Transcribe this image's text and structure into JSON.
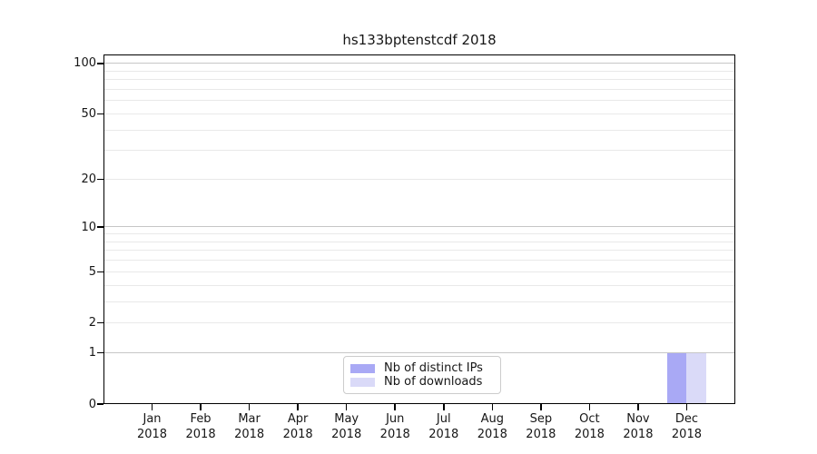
{
  "chart_data": {
    "type": "bar",
    "title": "hs133bptenstcdf 2018",
    "categories": [
      "Jan",
      "Feb",
      "Mar",
      "Apr",
      "May",
      "Jun",
      "Jul",
      "Aug",
      "Sep",
      "Oct",
      "Nov",
      "Dec"
    ],
    "category_sublabel": "2018",
    "series": [
      {
        "name": "Nb of distinct IPs",
        "color": "#a9a9f5",
        "values": [
          0,
          0,
          0,
          0,
          0,
          0,
          0,
          0,
          0,
          0,
          0,
          1
        ]
      },
      {
        "name": "Nb of downloads",
        "color": "#dadaf8",
        "values": [
          0,
          0,
          0,
          0,
          0,
          0,
          0,
          0,
          0,
          0,
          0,
          1
        ]
      }
    ],
    "yscale": "log1p",
    "ylim": [
      0,
      113
    ],
    "yticks": [
      0,
      1,
      2,
      5,
      10,
      20,
      50,
      100
    ],
    "yticks_major_grid": [
      1,
      10,
      100
    ],
    "yticks_minor_grid": [
      2,
      5,
      3,
      4,
      6,
      7,
      8,
      9,
      20,
      50,
      30,
      40,
      60,
      70,
      80,
      90
    ],
    "grid": "horizontal",
    "legend_position": "lower-center",
    "colors": {
      "axis": "#000000",
      "grid_major": "#c6c6c6",
      "grid_minor": "#e9e9e9",
      "text": "#161616",
      "background": "#ffffff"
    }
  }
}
